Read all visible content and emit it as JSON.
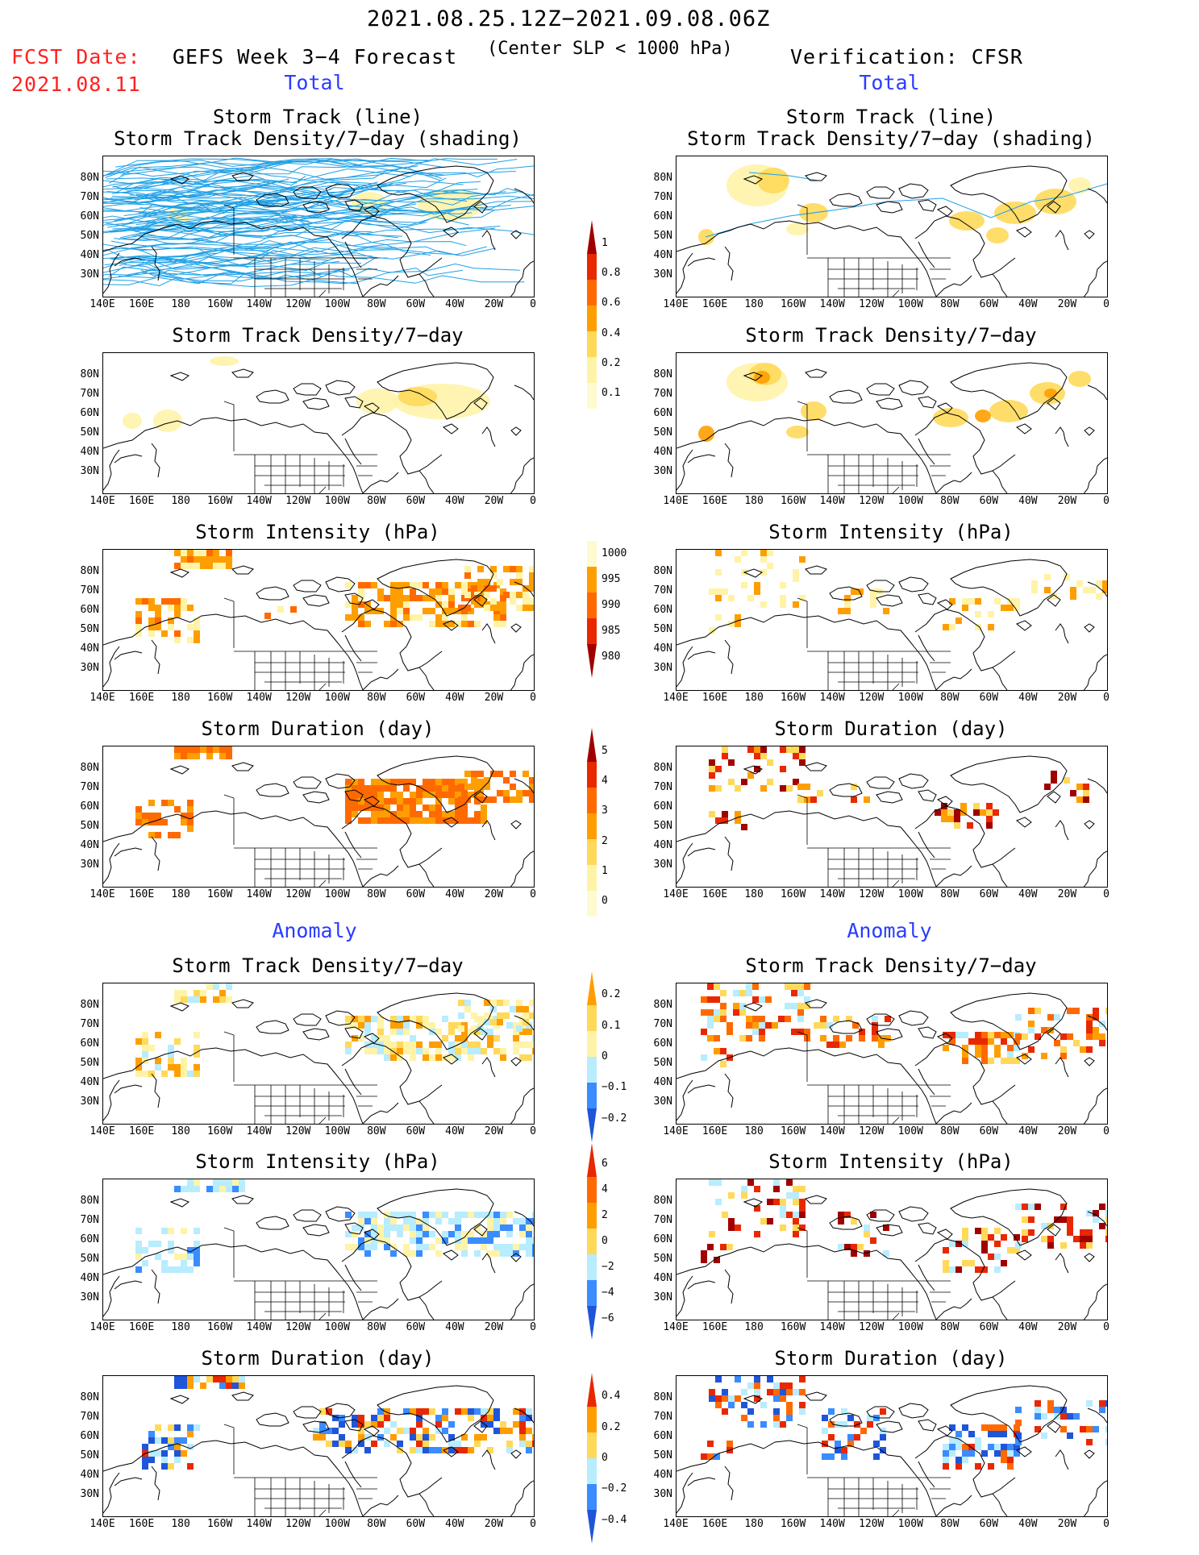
{
  "header": {
    "date_range": "2021.08.25.12Z−2021.09.08.06Z",
    "fcst_date_label": "FCST Date:",
    "fcst_date": "2021.08.11",
    "forecast_title": "GEFS Week 3−4 Forecast",
    "condition": "(Center SLP < 1000 hPa)",
    "verification": "Verification: CFSR"
  },
  "sections": {
    "total": "Total",
    "anomaly": "Anomaly"
  },
  "panel_titles": {
    "track_line": "Storm Track (line)",
    "track_shading": "Storm Track Density/7−day (shading)",
    "density": "Storm Track Density/7−day",
    "intensity": "Storm Intensity (hPa)",
    "duration": "Storm Duration (day)"
  },
  "axes": {
    "lat_labels": [
      "80N",
      "70N",
      "60N",
      "50N",
      "40N",
      "30N"
    ],
    "lon_labels": [
      "140E",
      "160E",
      "180",
      "160W",
      "140W",
      "120W",
      "100W",
      "80W",
      "60W",
      "40W",
      "20W",
      "0"
    ]
  },
  "colorbars": {
    "density_total": [
      "1",
      "0.8",
      "0.6",
      "0.4",
      "0.2",
      "0.1"
    ],
    "intensity_total": [
      "1000",
      "995",
      "990",
      "985",
      "980"
    ],
    "duration_total": [
      "5",
      "4",
      "3",
      "2",
      "1",
      "0"
    ],
    "density_anomaly": [
      "0.2",
      "0.1",
      "0",
      "−0.1",
      "−0.2"
    ],
    "intensity_anomaly": [
      "6",
      "4",
      "2",
      "0",
      "−2",
      "−4",
      "−6"
    ],
    "duration_anomaly": [
      "0.4",
      "0.2",
      "0",
      "−0.2",
      "−0.4"
    ]
  },
  "colors": {
    "header_red": "#ff2020",
    "section_blue": "#2a3cff",
    "track_line": "#1ea0e6",
    "light_yellow": "#fff3a8",
    "yellow": "#ffd95a",
    "orange": "#ff9e00",
    "dark_orange": "#ff6a00",
    "red": "#e82800",
    "dark_red": "#a00000",
    "light_blue": "#b8ecff",
    "blue": "#3a8cff",
    "dark_blue": "#1f55d8"
  }
}
